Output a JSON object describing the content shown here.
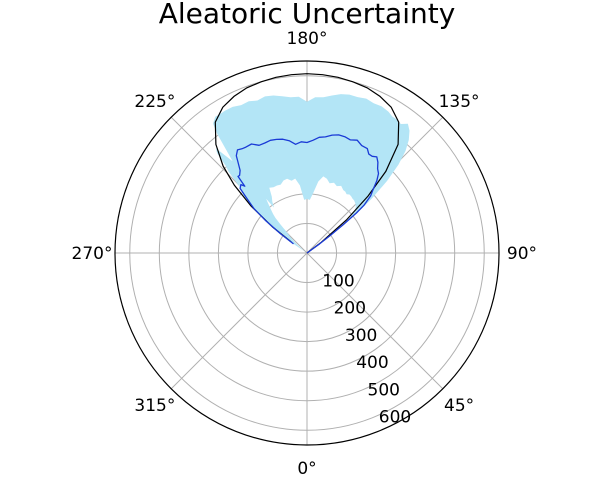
{
  "chart_data": {
    "type": "polar_area",
    "title": "Aleatoric Uncertainty",
    "theta_zero_location": "S",
    "theta_direction": "counterclockwise",
    "angular_ticks": [
      "0°",
      "45°",
      "90°",
      "135°",
      "180°",
      "225°",
      "270°",
      "315°"
    ],
    "radial_ticks": [
      "100",
      "200",
      "300",
      "400",
      "500",
      "600"
    ],
    "radial_tick_values": [
      100,
      200,
      300,
      400,
      500,
      600
    ],
    "r_max": 650,
    "grid": true,
    "colors": {
      "band_fill": "#b3e5f6",
      "mean_line": "#1a3ad6",
      "outer_curve": "#000000"
    },
    "outer_curve": {
      "theta_deg": [
        125,
        127,
        130,
        133,
        136,
        140,
        145,
        150,
        155,
        160,
        165,
        170,
        175,
        180,
        185,
        190,
        195,
        200,
        205,
        210,
        215,
        220,
        224,
        227,
        230,
        233,
        235
      ],
      "r": [
        0,
        61,
        174,
        283,
        384,
        480,
        541,
        570,
        585,
        595,
        600,
        604,
        606,
        607,
        606,
        604,
        600,
        595,
        585,
        570,
        541,
        480,
        409,
        336,
        247,
        146,
        65
      ]
    },
    "mean_line": {
      "theta_deg": [
        125,
        126,
        127,
        128,
        129,
        130,
        132,
        134,
        136,
        138,
        140,
        142,
        144,
        146,
        148,
        150,
        153,
        156,
        159,
        162,
        165,
        168,
        171,
        174,
        177,
        180,
        183,
        186,
        189,
        192,
        195,
        198,
        201,
        204,
        207,
        210,
        212,
        214,
        216,
        217,
        219,
        221,
        222,
        223,
        224,
        226,
        228,
        230,
        232,
        234,
        236
      ],
      "r": [
        0,
        53,
        98,
        156,
        215,
        252,
        290,
        312,
        340,
        362,
        372,
        390,
        402,
        395,
        395,
        408,
        408,
        418,
        410,
        414,
        414,
        408,
        398,
        394,
        382,
        374,
        377,
        370,
        385,
        394,
        398,
        401,
        399,
        399,
        414,
        414,
        416,
        421,
        407,
        390,
        360,
        348,
        349,
        309,
        322,
        315,
        270,
        235,
        177,
        111,
        55
      ]
    },
    "band": {
      "theta_deg": [
        125,
        126,
        127,
        128,
        129,
        130,
        132,
        134,
        136,
        138,
        140,
        142,
        144,
        146,
        148,
        150,
        153,
        156,
        159,
        162,
        165,
        168,
        171,
        174,
        177,
        180,
        183,
        186,
        189,
        192,
        195,
        198,
        201,
        204,
        207,
        210,
        212,
        214,
        216,
        217,
        219,
        221,
        222,
        223,
        224,
        226,
        228,
        230,
        232,
        234,
        236
      ],
      "r_upper": [
        0,
        55,
        105,
        170,
        240,
        285,
        365,
        430,
        480,
        515,
        540,
        555,
        540,
        545,
        545,
        552,
        557,
        555,
        560,
        555,
        555,
        550,
        540,
        530,
        528,
        512,
        530,
        530,
        537,
        545,
        549,
        543,
        550,
        548,
        555,
        556,
        555,
        556,
        541,
        505,
        400,
        470,
        455,
        402,
        382,
        305,
        290,
        238,
        177,
        111,
        55
      ],
      "r_lower": [
        0,
        45,
        90,
        135,
        170,
        195,
        220,
        230,
        235,
        239,
        240,
        243,
        245,
        240,
        245,
        246,
        255,
        248,
        255,
        248,
        260,
        265,
        245,
        205,
        180,
        183,
        180,
        230,
        255,
        250,
        260,
        258,
        248,
        250,
        250,
        255,
        225,
        210,
        190,
        230,
        200,
        175,
        160,
        130,
        100,
        80,
        60,
        40,
        20,
        10,
        0
      ]
    }
  }
}
